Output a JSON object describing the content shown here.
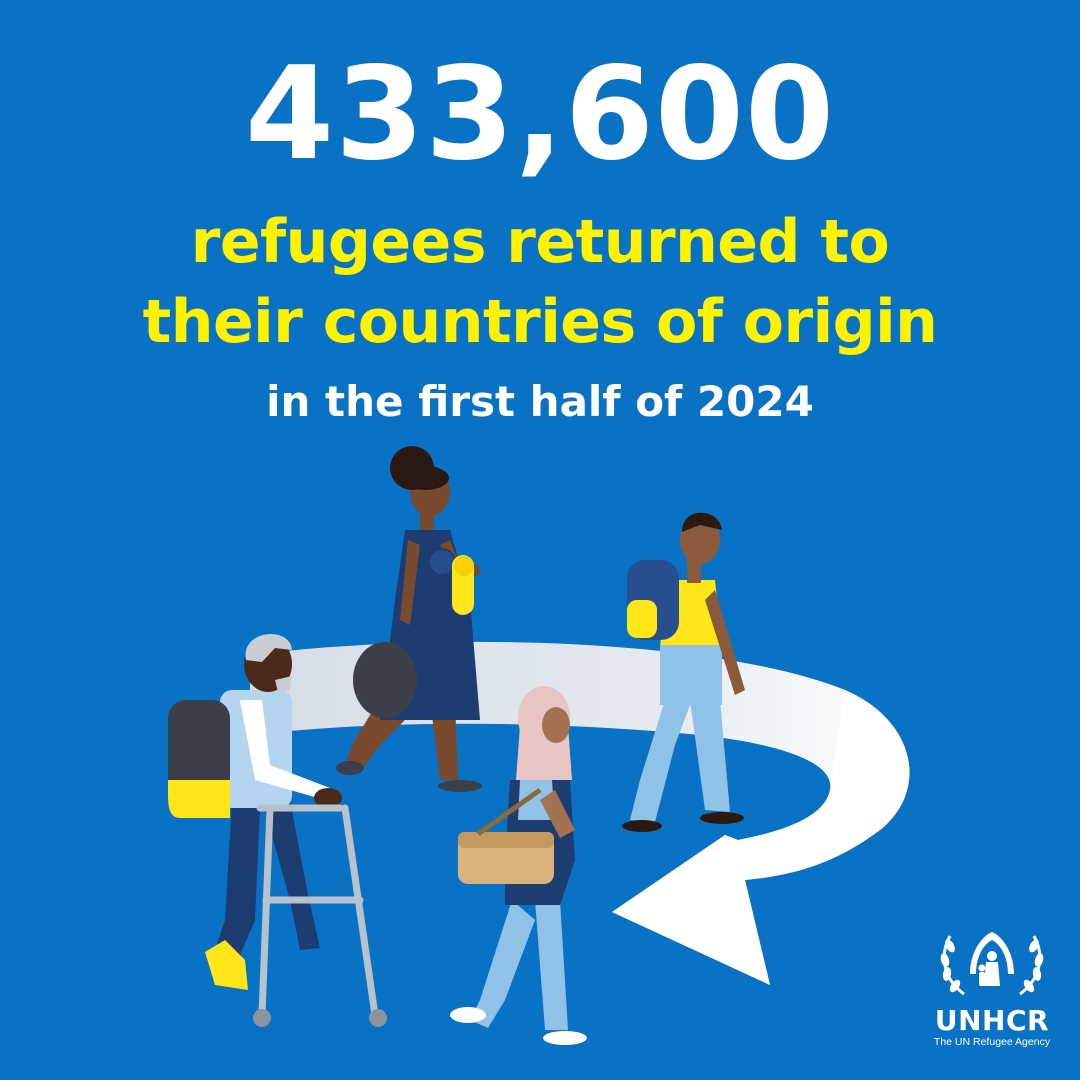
{
  "headline": {
    "figure": "433,600",
    "line1": "refugees returned to",
    "line2": "their countries of origin",
    "subline": "in the first half of 2024"
  },
  "logo": {
    "name": "UNHCR",
    "tagline": "The UN Refugee Agency"
  },
  "illustration": {
    "elements": [
      "return-arrow-icon",
      "elderly-man-with-walker",
      "woman-with-bedroll",
      "girl-with-bag",
      "boy-with-backpack"
    ]
  },
  "colors": {
    "background": "#0a72c4",
    "headline": "#ffffff",
    "highlight": "#fff200",
    "arrow": "#ffffff"
  }
}
